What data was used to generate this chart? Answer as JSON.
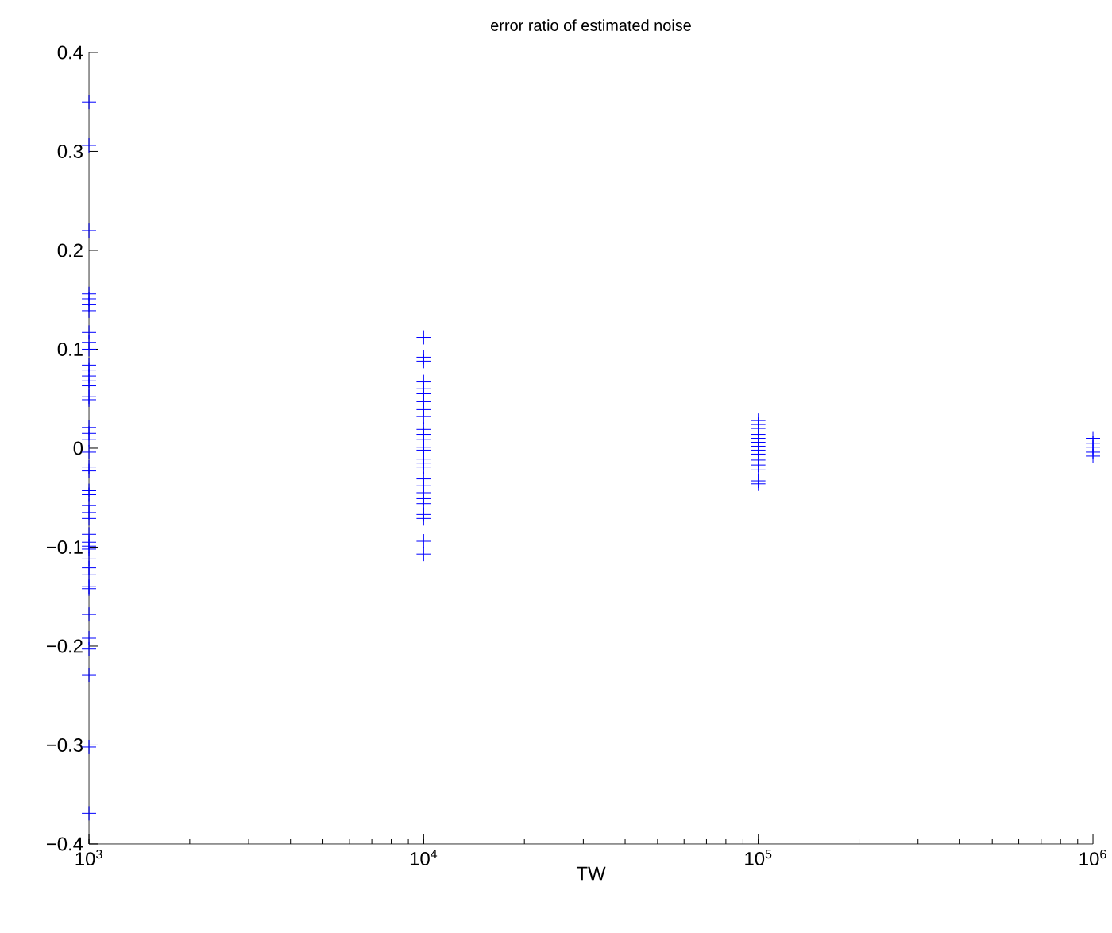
{
  "chart_data": {
    "type": "scatter",
    "title": "error ratio of estimated noise",
    "xlabel": "TW",
    "log": "x",
    "marker": "cross",
    "xlim": [
      1000,
      1000000
    ],
    "xticks": [
      {
        "value": 1000,
        "label": "10$^{3}$"
      },
      {
        "value": 10000,
        "label": "10$^{4}$"
      },
      {
        "value": 100000,
        "label": "10$^{5}$"
      },
      {
        "value": 1000000,
        "label": "10$^{6}$"
      }
    ],
    "ylim": [
      -0.4,
      0.4
    ],
    "yticks": [
      {
        "value": -0.4,
        "label": "−0.4"
      },
      {
        "value": -0.3,
        "label": "−0.3"
      },
      {
        "value": -0.2,
        "label": "−0.2"
      },
      {
        "value": -0.1,
        "label": "−0.1"
      },
      0,
      0.1,
      0.2,
      0.3,
      0.4
    ],
    "series": [
      {
        "color": "#0000ff",
        "x": [
          1000,
          1000,
          1000,
          1000,
          1000,
          1000,
          1000,
          1000,
          1000,
          1000,
          1000,
          1000,
          1000,
          1000,
          1000,
          1000,
          1000,
          1000,
          1000,
          1000,
          1000,
          1000,
          1000,
          1000,
          1000,
          1000,
          1000,
          1000,
          1000,
          1000,
          1000,
          1000,
          1000,
          1000,
          1000,
          1000,
          1000,
          1000,
          1000,
          1000,
          1000,
          1000,
          1000,
          10000,
          10000,
          10000,
          10000,
          10000,
          10000,
          10000,
          10000,
          10000,
          10000,
          10000,
          10000,
          10000,
          10000,
          10000,
          10000,
          10000,
          10000,
          10000,
          10000,
          10000,
          10000,
          10000,
          10000,
          10000,
          10000,
          100000,
          100000,
          100000,
          100000,
          100000,
          100000,
          100000,
          100000,
          100000,
          100000,
          100000,
          100000,
          100000,
          100000,
          1000000,
          1000000,
          1000000,
          1000000,
          1000000
        ],
        "values": [
          0.35,
          0.306,
          0.22,
          0.156,
          0.151,
          0.145,
          0.139,
          0.117,
          0.107,
          0.1,
          0.084,
          0.079,
          0.073,
          0.068,
          0.063,
          0.052,
          0.049,
          0.021,
          0.015,
          0.009,
          -0.004,
          -0.019,
          -0.043,
          -0.047,
          -0.058,
          -0.065,
          -0.071,
          -0.087,
          -0.095,
          -0.099,
          -0.102,
          -0.112,
          -0.121,
          -0.128,
          -0.14,
          -0.142,
          -0.168,
          -0.192,
          -0.203,
          -0.229,
          -0.302,
          -0.369,
          -0.023,
          0.112,
          0.092,
          0.088,
          0.067,
          0.06,
          0.055,
          0.047,
          0.039,
          0.032,
          0.019,
          0.014,
          0.009,
          0.001,
          -0.002,
          -0.011,
          -0.015,
          -0.019,
          -0.031,
          -0.038,
          -0.045,
          -0.051,
          -0.056,
          -0.067,
          -0.071,
          -0.094,
          -0.107,
          0.028,
          0.024,
          0.02,
          0.014,
          0.01,
          0.006,
          0.002,
          -0.002,
          -0.006,
          -0.012,
          -0.017,
          -0.022,
          -0.033,
          -0.036,
          0.01,
          0.005,
          0.001,
          -0.004,
          -0.008
        ]
      }
    ]
  }
}
